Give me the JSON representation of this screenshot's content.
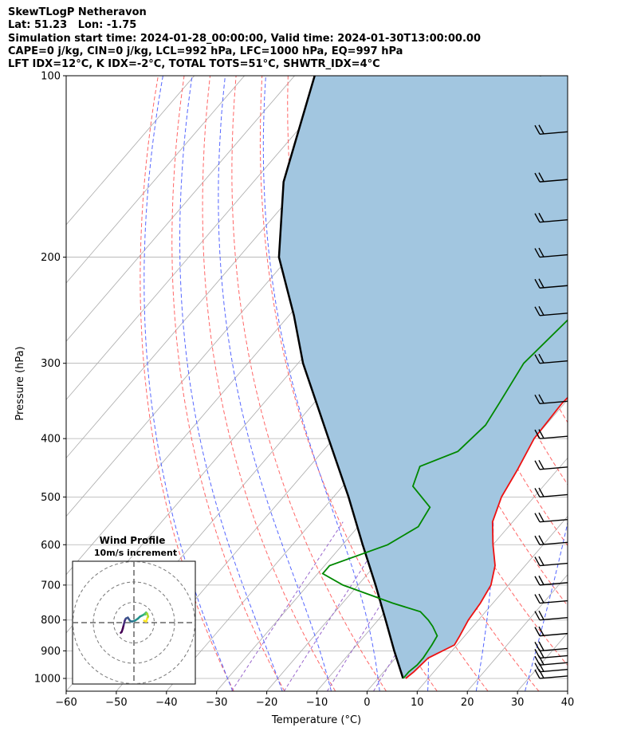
{
  "header": {
    "lines": [
      "SkewTLogP Netheravon",
      "Lat: 51.23   Lon: -1.75",
      "Simulation start time: 2024-01-28_00:00:00, Valid time: 2024-01-30T13:00:00.00",
      "CAPE=0 j/kg, CIN=0 j/kg, LCL=992 hPa, LFC=1000 hPa, EQ=997 hPa",
      "LFT IDX=12$^\\circ$C, K IDX=-2$^\\circ$C, TOTAL TOTS=51$^\\circ$C, SHWTR_IDX=4$^\\circ$C"
    ]
  },
  "chart_data": [
    {
      "type": "line",
      "subtype": "skew-T log-P diagram",
      "title": "",
      "xlabel": "Temperature ($^\\circ$C)",
      "ylabel": "Pressure (hPa)",
      "xlim": [
        -60,
        40
      ],
      "ylim": [
        1050,
        100
      ],
      "y_scale": "log",
      "skew": "isotherms slanted to the right",
      "grid": true,
      "x_ticks": [
        -60,
        -50,
        -40,
        -30,
        -20,
        -10,
        0,
        10,
        20,
        30,
        40
      ],
      "y_ticks": [
        100,
        200,
        300,
        400,
        500,
        600,
        700,
        800,
        900,
        1000
      ],
      "background_lines": {
        "isotherms": {
          "color": "#aaaaaa",
          "style": "solid"
        },
        "dry_adiabats": {
          "color": "#ff6666",
          "style": "dashed"
        },
        "moist_adiabats": {
          "color": "#5566ff",
          "style": "dashed"
        },
        "mixing_lines": {
          "color": "#9966cc",
          "style": "dashed"
        }
      },
      "series": [
        {
          "name": "",
          "role": "temperature",
          "color": "#ee1111",
          "points": [
            [
              1000,
              5.5
            ],
            [
              975,
              6
            ],
            [
              925,
              6.5
            ],
            [
              880,
              9.5
            ],
            [
              850,
              9
            ],
            [
              800,
              8
            ],
            [
              750,
              7.5
            ],
            [
              700,
              6.5
            ],
            [
              650,
              4
            ],
            [
              600,
              0
            ],
            [
              550,
              -4
            ],
            [
              500,
              -6.5
            ],
            [
              450,
              -8
            ],
            [
              400,
              -10
            ],
            [
              350,
              -10.5
            ],
            [
              300,
              -9.5
            ],
            [
              260,
              -9
            ],
            [
              240,
              -8.5
            ],
            [
              220,
              -6.5
            ],
            [
              200,
              -4
            ],
            [
              180,
              -2
            ],
            [
              160,
              0
            ],
            [
              140,
              2
            ],
            [
              120,
              5
            ],
            [
              100,
              7
            ]
          ]
        },
        {
          "name": "",
          "role": "dewpoint",
          "color": "#008800",
          "points": [
            [
              1000,
              5
            ],
            [
              975,
              5
            ],
            [
              950,
              5.5
            ],
            [
              925,
              5.5
            ],
            [
              880,
              5
            ],
            [
              850,
              4.5
            ],
            [
              820,
              2
            ],
            [
              800,
              0
            ],
            [
              775,
              -3
            ],
            [
              750,
              -10
            ],
            [
              700,
              -23
            ],
            [
              670,
              -29
            ],
            [
              650,
              -29
            ],
            [
              600,
              -21
            ],
            [
              560,
              -18
            ],
            [
              520,
              -19
            ],
            [
              480,
              -26
            ],
            [
              445,
              -28
            ],
            [
              420,
              -23
            ],
            [
              380,
              -22
            ],
            [
              350,
              -23
            ],
            [
              300,
              -25
            ],
            [
              250,
              -23.5
            ],
            [
              210,
              -22
            ],
            [
              200,
              -21.5
            ],
            [
              190,
              -22
            ],
            [
              175,
              -24
            ],
            [
              160,
              -22
            ],
            [
              120,
              -16
            ],
            [
              100,
              -10
            ]
          ]
        },
        {
          "name": "",
          "role": "parcel profile",
          "color": "#000000",
          "points": [
            [
              1000,
              5
            ],
            [
              900,
              -1.5
            ],
            [
              800,
              -8.5
            ],
            [
              700,
              -16.5
            ],
            [
              600,
              -26
            ],
            [
              500,
              -37
            ],
            [
              400,
              -51
            ],
            [
              300,
              -69
            ],
            [
              250,
              -79
            ],
            [
              200,
              -92
            ],
            [
              150,
              -104
            ],
            [
              100,
              -116
            ]
          ]
        }
      ],
      "shaded_area": {
        "between": [
          "parcel profile",
          "temperature"
        ],
        "color": "#a2c6e0"
      },
      "wind_barbs": {
        "color": "#000000",
        "levels_hPa": [
          1000,
          975,
          950,
          925,
          900,
          850,
          800,
          750,
          700,
          650,
          600,
          550,
          500,
          450,
          400,
          350,
          300,
          250,
          225,
          200,
          175,
          150,
          125,
          100
        ]
      }
    },
    {
      "type": "line",
      "subtype": "hodograph",
      "title": "Wind Profile",
      "subtitle": "10m/s increment",
      "rings_ms": [
        10,
        20,
        30
      ],
      "colormap": "viridis",
      "points_uv": [
        [
          -6.5,
          -5
        ],
        [
          -6,
          -4.5
        ],
        [
          -5.5,
          -3
        ],
        [
          -5,
          -1
        ],
        [
          -4.5,
          1
        ],
        [
          -4,
          2
        ],
        [
          -3,
          2.5
        ],
        [
          -2,
          1
        ],
        [
          -1,
          0.5
        ],
        [
          0.5,
          1
        ],
        [
          2,
          2
        ],
        [
          3,
          3
        ],
        [
          4,
          3.5
        ],
        [
          5,
          4
        ],
        [
          6,
          5
        ],
        [
          5.5,
          4
        ],
        [
          6.5,
          4.5
        ],
        [
          7,
          3
        ],
        [
          6.5,
          2
        ],
        [
          6,
          0.5
        ],
        [
          5,
          1
        ]
      ]
    }
  ]
}
